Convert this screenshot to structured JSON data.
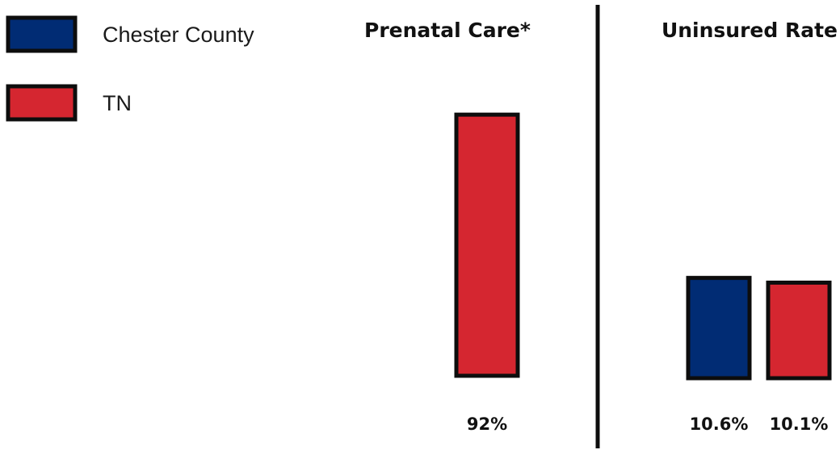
{
  "chart_data": {
    "type": "bar",
    "series": [
      {
        "name": "Chester County",
        "color": "#012c74"
      },
      {
        "name": "TN",
        "color": "#d52630"
      }
    ],
    "legend_position": "top-left",
    "bar_stroke_color": "#0d0d0d",
    "divider_color": "#0d0d0d",
    "grid": false,
    "panels": [
      {
        "title": "Prenatal Care*",
        "ylim": [
          0,
          100
        ],
        "bars": [
          {
            "series": "TN",
            "value": 92,
            "label": "92%"
          }
        ]
      },
      {
        "title": "Uninsured Rate",
        "ylim": [
          0,
          30
        ],
        "bars": [
          {
            "series": "Chester County",
            "value": 10.6,
            "label": "10.6%"
          },
          {
            "series": "TN",
            "value": 10.1,
            "label": "10.1%"
          }
        ]
      }
    ]
  }
}
